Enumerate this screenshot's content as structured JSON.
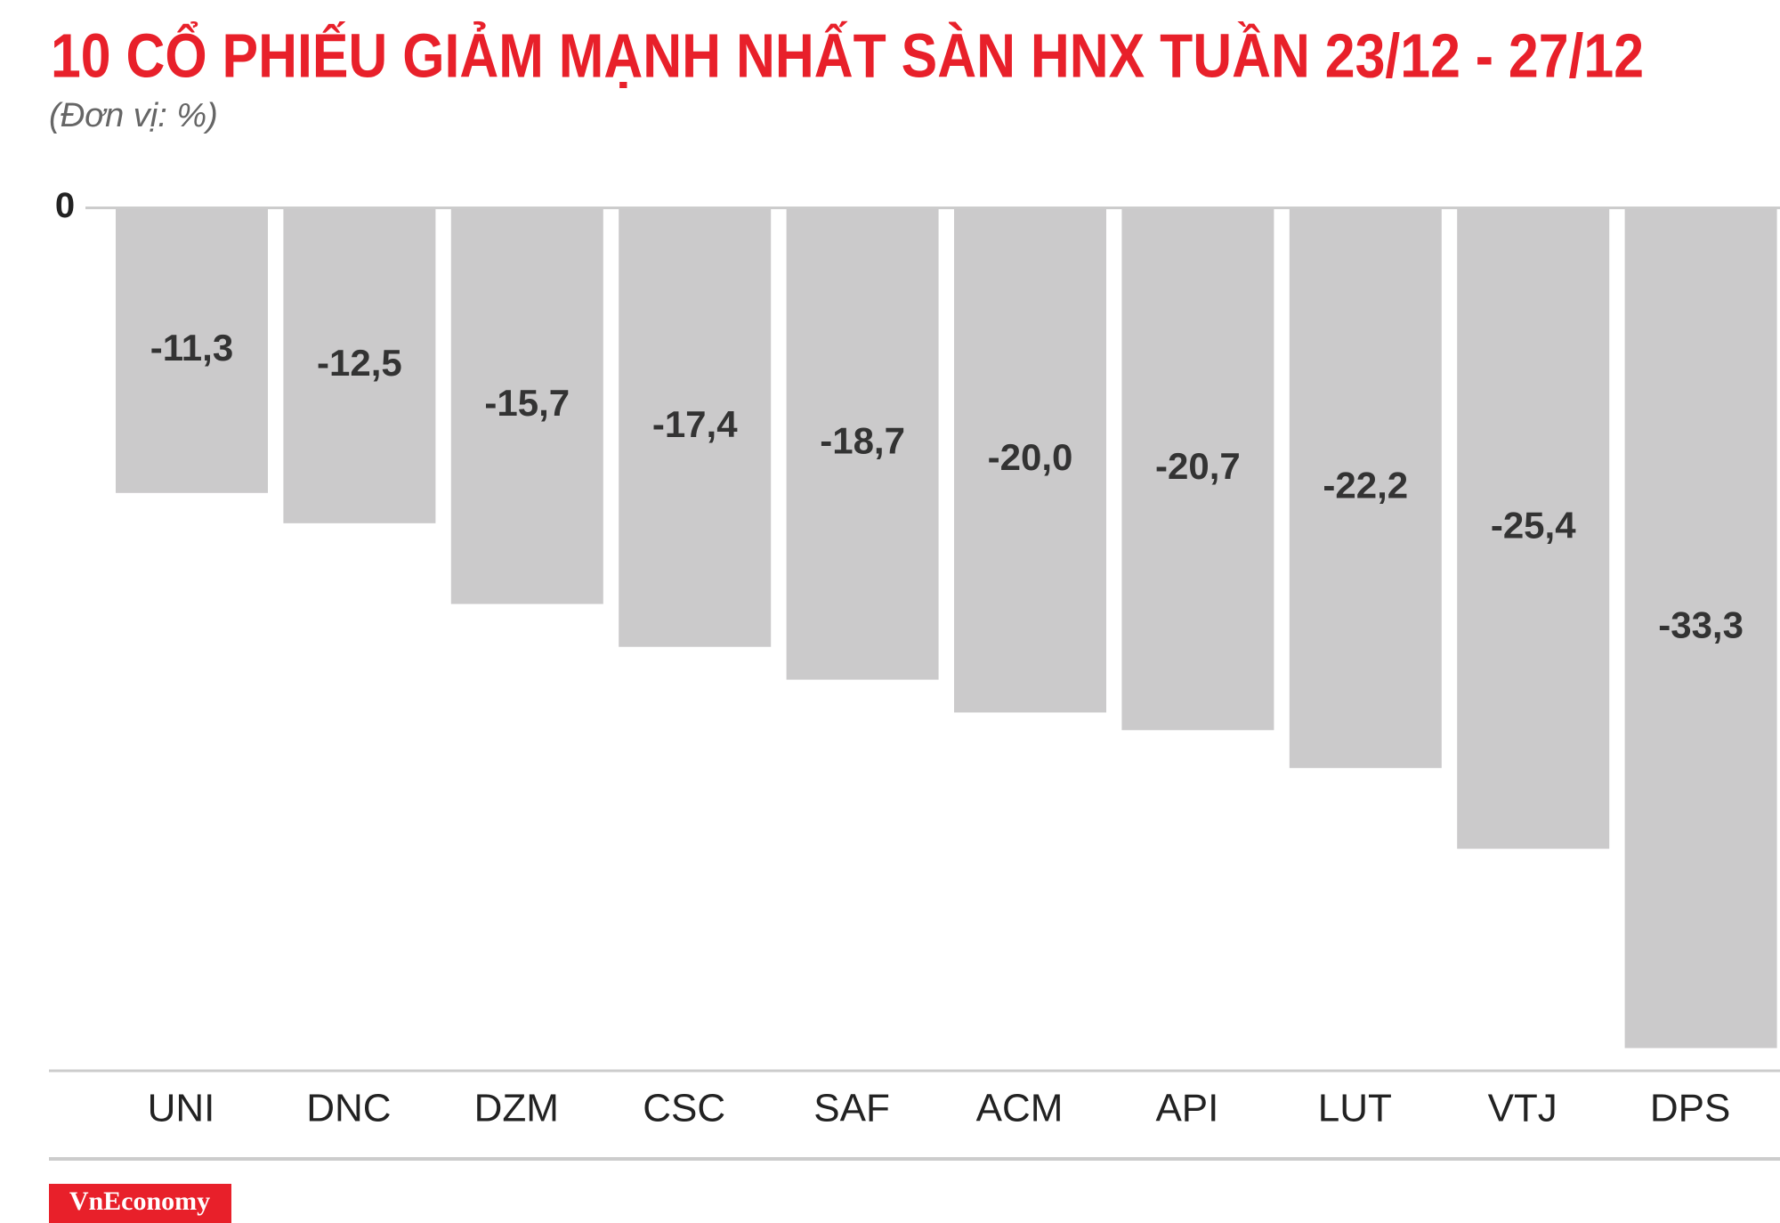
{
  "chart_data": {
    "type": "bar",
    "title": "10 CỔ PHIẾU GIẢM MẠNH NHẤT SÀN HNX TUẦN 23/12 - 27/12",
    "subtitle": "(Đơn vị: %)",
    "categories": [
      "UNI",
      "DNC",
      "DZM",
      "CSC",
      "SAF",
      "ACM",
      "API",
      "LUT",
      "VTJ",
      "DPS"
    ],
    "values": [
      -11.3,
      -12.5,
      -15.7,
      -17.4,
      -18.7,
      -20.0,
      -20.7,
      -22.2,
      -25.4,
      -33.3
    ],
    "value_labels": [
      "-11,3",
      "-12,5",
      "-15,7",
      "-17,4",
      "-18,7",
      "-20,0",
      "-20,7",
      "-22,2",
      "-25,4",
      "-33,3"
    ],
    "color": "#cbcacb",
    "ylim": [
      -34.2,
      0
    ],
    "yticks": [
      0
    ],
    "grid": false,
    "source": "VnEconomy"
  }
}
